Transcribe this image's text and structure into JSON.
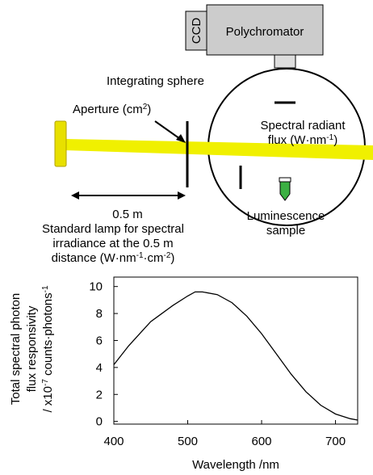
{
  "diagram": {
    "ccd": [
      [
        "CCD"
      ]
    ],
    "polychromator": [
      [
        "Polychromator"
      ]
    ],
    "sphere": [
      [
        "Integrating sphere"
      ]
    ],
    "aperture": [
      [
        "Aperture (cm",
        "2",
        ")"
      ]
    ],
    "flux": [
      [
        "Spectral radiant"
      ],
      [
        "flux  (W·nm",
        "-1",
        ")"
      ]
    ],
    "distance": [
      [
        "0.5 m"
      ]
    ],
    "lamp": [
      [
        "Standard lamp for spectral"
      ],
      [
        "irradiance at the 0.5 m"
      ],
      [
        "distance (W·nm",
        "-1",
        "·cm",
        "-2",
        ")"
      ]
    ],
    "sample": [
      [
        "Luminescence"
      ],
      [
        "sample"
      ]
    ]
  },
  "chart_data": {
    "type": "line",
    "x_label": "Wavelength /nm",
    "y_label": [
      [
        "Total spectral photon"
      ],
      [
        "flux responsivity"
      ],
      [
        "/ x10",
        "-7",
        " counts·photons",
        "-1"
      ]
    ],
    "x": [
      400,
      420,
      440,
      450,
      460,
      480,
      500,
      510,
      520,
      540,
      560,
      580,
      600,
      620,
      640,
      660,
      680,
      700,
      720,
      730
    ],
    "values": [
      4.2,
      5.6,
      6.8,
      7.4,
      7.8,
      8.6,
      9.3,
      9.6,
      9.6,
      9.4,
      8.8,
      7.8,
      6.5,
      5.0,
      3.5,
      2.2,
      1.2,
      0.55,
      0.2,
      0.1
    ],
    "color": "#000000",
    "xlim": [
      400,
      730
    ],
    "ylim": [
      -0.2,
      10.7
    ],
    "xticks": [
      400,
      500,
      600,
      700
    ],
    "yticks": [
      0,
      2,
      4,
      6,
      8,
      10
    ]
  }
}
